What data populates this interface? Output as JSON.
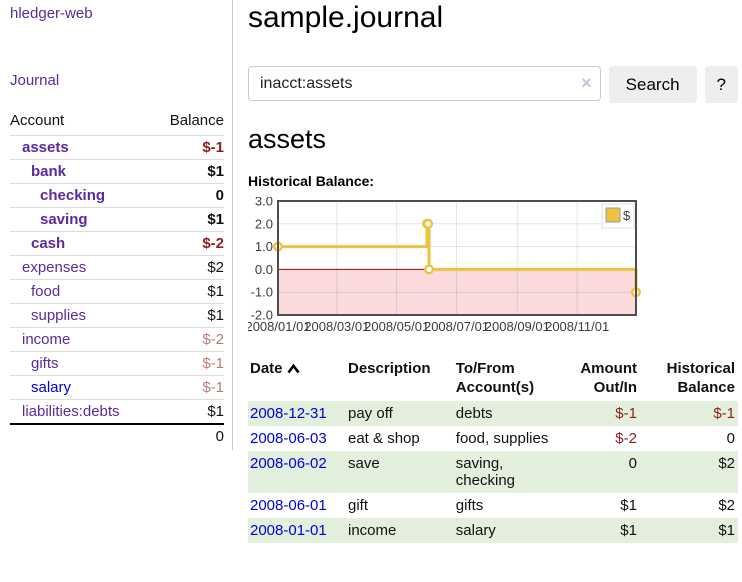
{
  "app": {
    "brand": "hledger-web",
    "nav": [
      {
        "label": "Journal"
      }
    ]
  },
  "sidebar": {
    "columns": [
      "Account",
      "Balance"
    ],
    "accounts": [
      {
        "name": "assets",
        "depth": 1,
        "balance": "$-1",
        "bold": true,
        "negative": true
      },
      {
        "name": "bank",
        "depth": 2,
        "balance": "$1",
        "bold": true,
        "negative": false
      },
      {
        "name": "checking",
        "depth": 3,
        "balance": "0",
        "bold": true,
        "negative": false
      },
      {
        "name": "saving",
        "depth": 3,
        "balance": "$1",
        "bold": true,
        "negative": false
      },
      {
        "name": "cash",
        "depth": 2,
        "balance": "$-2",
        "bold": true,
        "negative": true
      },
      {
        "name": "expenses",
        "depth": 1,
        "balance": "$2",
        "bold": false,
        "negative": false
      },
      {
        "name": "food",
        "depth": 2,
        "balance": "$1",
        "bold": false,
        "negative": false
      },
      {
        "name": "supplies",
        "depth": 2,
        "balance": "$1",
        "bold": false,
        "negative": false
      },
      {
        "name": "income",
        "depth": 1,
        "balance": "$-2",
        "bold": false,
        "negative": true,
        "muted": true
      },
      {
        "name": "gifts",
        "depth": 2,
        "balance": "$-1",
        "bold": false,
        "negative": true,
        "muted": true
      },
      {
        "name": "salary",
        "depth": 2,
        "balance": "$-1",
        "bold": false,
        "negative": true,
        "muted": true,
        "blue": true
      },
      {
        "name": "liabilities:debts",
        "depth": 1,
        "balance": "$1",
        "bold": false,
        "negative": false
      }
    ],
    "total": "0"
  },
  "header": {
    "title": "sample.journal"
  },
  "search": {
    "value": "inacct:assets",
    "button_label": "Search",
    "help_label": "?",
    "icons": {
      "clear": "×",
      "sort_ascending": "chevron-up"
    }
  },
  "account_page": {
    "heading": "assets",
    "chart_label": "Historical Balance:"
  },
  "chart_data": {
    "type": "line",
    "step": true,
    "title": "Historical Balance",
    "series": [
      {
        "name": "$",
        "color": "#edc240",
        "points": [
          [
            "2008-01-01",
            1
          ],
          [
            "2008-06-01",
            2
          ],
          [
            "2008-06-02",
            2
          ],
          [
            "2008-06-03",
            0
          ],
          [
            "2008-12-31",
            -1
          ]
        ]
      }
    ],
    "x_range": [
      "2008-01-01",
      "2008-12-31"
    ],
    "ylim": [
      -2,
      3
    ],
    "y_ticks": [
      3.0,
      2.0,
      1.0,
      0.0,
      -1.0,
      -2.0
    ],
    "x_ticks": [
      "2008/01/01",
      "2008/03/01",
      "2008/05/01",
      "2008/07/01",
      "2008/09/01",
      "2008/11/01"
    ],
    "grid": true,
    "legend": {
      "position": "top-right",
      "label": "$"
    },
    "negative_region_color": "#fadada",
    "zero_line_color": "#a00000",
    "plot_border_color": "#4d4d4d",
    "gridline_color": "rgba(110,110,110,0.18)",
    "tick_text_color": "#3c3c3c"
  },
  "register": {
    "columns": [
      "Date",
      "Description",
      "To/From Account(s)",
      "Amount Out/In",
      "Historical Balance"
    ],
    "rows": [
      {
        "date": "2008-12-31",
        "description": "pay off",
        "accounts": "debts",
        "amount": "$-1",
        "balance": "$-1"
      },
      {
        "date": "2008-06-03",
        "description": "eat & shop",
        "accounts": "food, supplies",
        "amount": "$-2",
        "balance": "0"
      },
      {
        "date": "2008-06-02",
        "description": "save",
        "accounts": "saving, checking",
        "amount": "0",
        "balance": "$2"
      },
      {
        "date": "2008-06-01",
        "description": "gift",
        "accounts": "gifts",
        "amount": "$1",
        "balance": "$2"
      },
      {
        "date": "2008-01-01",
        "description": "income",
        "accounts": "salary",
        "amount": "$1",
        "balance": "$1"
      }
    ]
  }
}
